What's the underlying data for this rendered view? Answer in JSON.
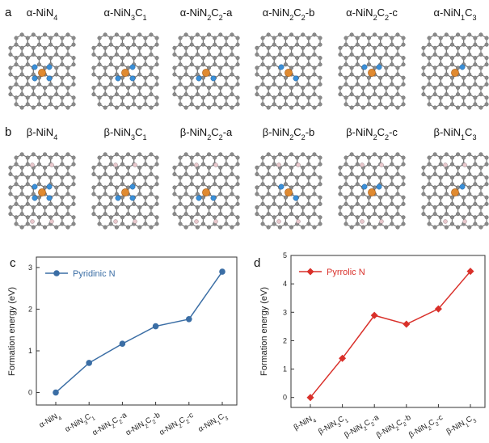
{
  "panels": {
    "a": {
      "label": "a",
      "structures": [
        {
          "pre": "α-NiN",
          "s1": "4",
          "mid": "",
          "s2": "",
          "post": ""
        },
        {
          "pre": "α-NiN",
          "s1": "3",
          "mid": "C",
          "s2": "1",
          "post": ""
        },
        {
          "pre": "α-NiN",
          "s1": "2",
          "mid": "C",
          "s2": "2",
          "post": "-a"
        },
        {
          "pre": "α-NiN",
          "s1": "2",
          "mid": "C",
          "s2": "2",
          "post": "-b"
        },
        {
          "pre": "α-NiN",
          "s1": "2",
          "mid": "C",
          "s2": "2",
          "post": "-c"
        },
        {
          "pre": "α-NiN",
          "s1": "1",
          "mid": "C",
          "s2": "3",
          "post": ""
        }
      ]
    },
    "b": {
      "label": "b",
      "structures": [
        {
          "pre": "β-NiN",
          "s1": "4",
          "mid": "",
          "s2": "",
          "post": ""
        },
        {
          "pre": "β-NiN",
          "s1": "3",
          "mid": "C",
          "s2": "1",
          "post": ""
        },
        {
          "pre": "β-NiN",
          "s1": "2",
          "mid": "C",
          "s2": "2",
          "post": "-a"
        },
        {
          "pre": "β-NiN",
          "s1": "2",
          "mid": "C",
          "s2": "2",
          "post": "-b"
        },
        {
          "pre": "β-NiN",
          "s1": "2",
          "mid": "C",
          "s2": "2",
          "post": "-c"
        },
        {
          "pre": "β-NiN",
          "s1": "1",
          "mid": "C",
          "s2": "3",
          "post": ""
        }
      ]
    }
  },
  "colors": {
    "carbon": "#8a8a8a",
    "nitrogen": "#3a8fd8",
    "nickel": "#e08a30",
    "hydrogen": "#e8c8cc",
    "line_c": "#3b6ea5",
    "line_d": "#d9302a"
  },
  "chart_data": [
    {
      "panel": "c",
      "type": "line",
      "categories": [
        "α-NiN4",
        "α-NiN3C1",
        "α-NiN2C2-a",
        "α-NiN2C2-b",
        "α-NiN2C2-c",
        "α-NiN1C3"
      ],
      "series": [
        {
          "name": "Pyridinic N",
          "values": [
            0,
            0.71,
            1.17,
            1.59,
            1.76,
            2.9
          ],
          "marker": "circle"
        }
      ],
      "ylabel": "Formation energy (eV)",
      "ylim": [
        -0.3,
        3.25
      ],
      "yticks": [
        0,
        1,
        2,
        3
      ]
    },
    {
      "panel": "d",
      "type": "line",
      "categories": [
        "β-NiN4",
        "β-NiN3C1",
        "β-NiN2C2-a",
        "β-NiN2C2-b",
        "β-NiN2C2-c",
        "β-NiN1C3"
      ],
      "series": [
        {
          "name": "Pyrrolic N",
          "values": [
            0,
            1.38,
            2.89,
            2.58,
            3.12,
            4.44
          ],
          "marker": "diamond"
        }
      ],
      "ylabel": "Formation energy (eV)",
      "ylim": [
        -0.35,
        5.0
      ],
      "yticks": [
        0,
        1,
        2,
        3,
        4,
        5
      ]
    }
  ]
}
